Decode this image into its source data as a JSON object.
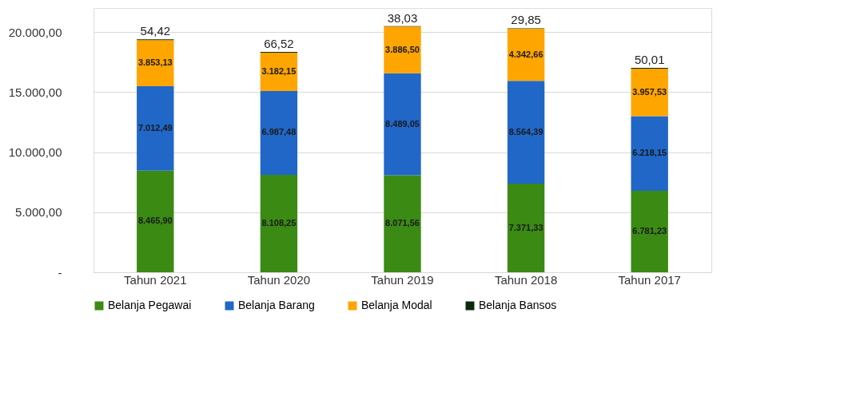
{
  "chart_data": {
    "type": "bar",
    "stacked": true,
    "categories": [
      "Tahun 2021",
      "Tahun 2020",
      "Tahun 2019",
      "Tahun 2018",
      "Tahun 2017"
    ],
    "series": [
      {
        "name": "Belanja Pegawai",
        "color": "#3a8a14",
        "values": [
          8465.9,
          8108.25,
          8071.56,
          7371.33,
          6781.23
        ],
        "value_labels": [
          "8.465,90",
          "8.108,25",
          "8.071,56",
          "7.371,33",
          "6.781,23"
        ]
      },
      {
        "name": "Belanja Barang",
        "color": "#2067c8",
        "values": [
          7012.49,
          6987.48,
          8489.05,
          8564.39,
          6218.15
        ],
        "value_labels": [
          "7.012,49",
          "6.987,48",
          "8.489,05",
          "8.564,39",
          "6.218,15"
        ]
      },
      {
        "name": "Belanja Modal",
        "color": "#ffa500",
        "values": [
          3853.13,
          3182.15,
          3886.5,
          4342.66,
          3957.53
        ],
        "value_labels": [
          "3.853,13",
          "3.182,15",
          "3.886,50",
          "4.342,66",
          "3.957,53"
        ]
      },
      {
        "name": "Belanja Bansos",
        "color": "#0a2a0a",
        "values": [
          54.42,
          66.52,
          38.03,
          29.85,
          50.01
        ],
        "value_labels": [
          "54,42",
          "66,52",
          "38,03",
          "29,85",
          "50,01"
        ]
      }
    ],
    "ylim": [
      0,
      22000
    ],
    "yticks": [
      {
        "value": 0,
        "label": "-"
      },
      {
        "value": 5000,
        "label": "5.000,00"
      },
      {
        "value": 10000,
        "label": "10.000,00"
      },
      {
        "value": 15000,
        "label": "15.000,00"
      },
      {
        "value": 20000,
        "label": "20.000,00"
      }
    ],
    "grid": "y",
    "legend": "bottom"
  }
}
